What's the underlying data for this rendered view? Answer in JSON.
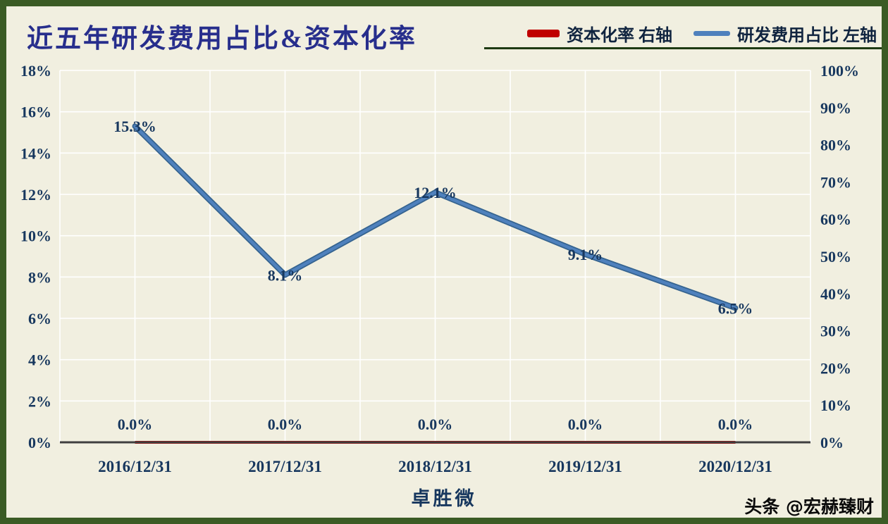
{
  "watermark": "头条 @宏赫臻财",
  "colors": {
    "frame_border": "#3b5b25",
    "background": "#f1efe0",
    "title_text": "#272e8c",
    "axis_text": "#17375e",
    "gridline": "#ffffff",
    "axis_line": "#3f3f3f",
    "red_series": "#c00000",
    "blue_series": "#4f81bd"
  },
  "chart_data": {
    "type": "line",
    "title": "近五年研发费用占比&资本化率",
    "categories": [
      "2016/12/31",
      "2017/12/31",
      "2018/12/31",
      "2019/12/31",
      "2020/12/31"
    ],
    "series": [
      {
        "name": "资本化率 右轴",
        "axis": "right",
        "color": "#c00000",
        "values": [
          0.0,
          0.0,
          0.0,
          0.0,
          0.0
        ],
        "labels": [
          "0.0%",
          "0.0%",
          "0.0%",
          "0.0%",
          "0.0%"
        ]
      },
      {
        "name": "研发费用占比 左轴",
        "axis": "left",
        "color": "#4f81bd",
        "values": [
          15.3,
          8.1,
          12.1,
          9.1,
          6.5
        ],
        "labels": [
          "15.3%",
          "8.1%",
          "12.1%",
          "9.1%",
          "6.5%"
        ]
      }
    ],
    "left_axis": {
      "min": 0,
      "max": 18,
      "step": 2,
      "ticks": [
        "18%",
        "16%",
        "14%",
        "12%",
        "10%",
        "8%",
        "6%",
        "4%",
        "2%",
        "0%"
      ]
    },
    "right_axis": {
      "min": 0,
      "max": 100,
      "step": 10,
      "ticks": [
        "100%",
        "90%",
        "80%",
        "70%",
        "60%",
        "50%",
        "40%",
        "30%",
        "20%",
        "10%",
        "0%"
      ]
    },
    "xlabel": "卓胜微",
    "grid": true,
    "legend_position": "top-right"
  }
}
